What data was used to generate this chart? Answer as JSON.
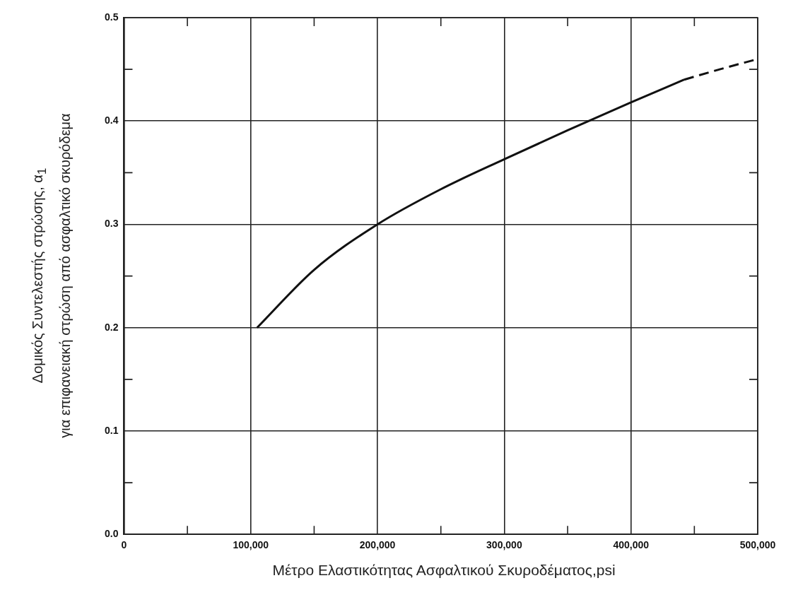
{
  "chart_data": {
    "type": "line",
    "xlabel": "Μέτρο Ελαστικότητας Ασφαλτικού Σκυροδέματος,psi",
    "ylabel": "Δομικός Συντελεστής στρώσης, α$_{1}$\nγια επιφανειακή στρώση από ασφαλτικό σκυρόδεμα",
    "series": [
      {
        "color": "#111111",
        "line_style": "solid",
        "x": [
          105000,
          150000,
          200000,
          250000,
          300000,
          350000,
          400000,
          442000
        ],
        "values": [
          0.2,
          0.256,
          0.3,
          0.334,
          0.363,
          0.391,
          0.418,
          0.44
        ]
      },
      {
        "color": "#111111",
        "line_style": "dashed",
        "x": [
          442000,
          470000,
          500000
        ],
        "values": [
          0.44,
          0.45,
          0.46
        ]
      }
    ],
    "xlim": [
      0,
      500000
    ],
    "ylim": [
      0,
      0.5
    ],
    "xticks": [
      {
        "value": 0,
        "label": "0"
      },
      {
        "value": 50000,
        "label": null
      },
      {
        "value": 100000,
        "label": "100,000"
      },
      {
        "value": 150000,
        "label": null
      },
      {
        "value": 200000,
        "label": "200,000"
      },
      {
        "value": 250000,
        "label": null
      },
      {
        "value": 300000,
        "label": "300,000"
      },
      {
        "value": 350000,
        "label": null
      },
      {
        "value": 400000,
        "label": "400,000"
      },
      {
        "value": 450000,
        "label": null
      },
      {
        "value": 500000,
        "label": "500,000"
      }
    ],
    "yticks": [
      {
        "value": 0,
        "label": "0.0"
      },
      {
        "value": 0.05,
        "label": null
      },
      {
        "value": 0.1,
        "label": "0.1"
      },
      {
        "value": 0.15,
        "label": null
      },
      {
        "value": 0.2,
        "label": "0.2"
      },
      {
        "value": 0.25,
        "label": null
      },
      {
        "value": 0.3,
        "label": "0.3"
      },
      {
        "value": 0.35,
        "label": null
      },
      {
        "value": 0.4,
        "label": "0.4"
      },
      {
        "value": 0.45,
        "label": null
      },
      {
        "value": 0.5,
        "label": "0.5"
      }
    ],
    "grid": true,
    "legend": false,
    "marker": "none"
  }
}
